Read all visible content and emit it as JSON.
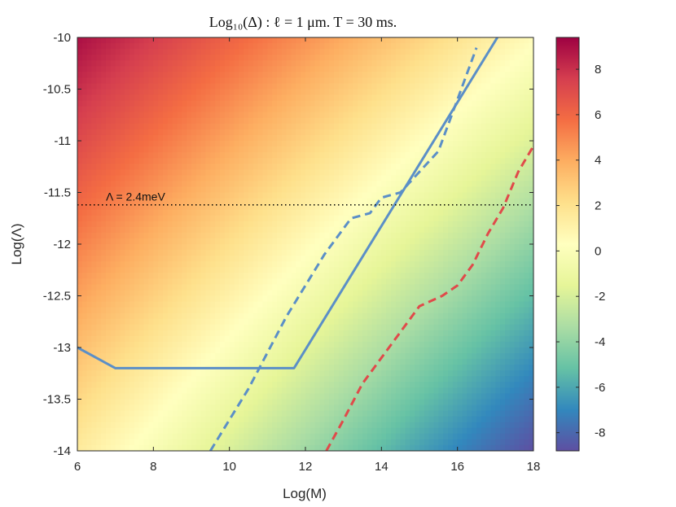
{
  "chart_data": {
    "type": "heatmap",
    "title": "Log₁₀(Δ) :  ℓ = 1 μm.  T = 30 ms.",
    "xlabel": "Log(M)",
    "ylabel": "Log(Λ)",
    "xlim": [
      6,
      18
    ],
    "ylim": [
      -14,
      -10
    ],
    "xticks": [
      6,
      8,
      10,
      12,
      14,
      16,
      18
    ],
    "yticks": [
      -10,
      -10.5,
      -11,
      -11.5,
      -12,
      -12.5,
      -13,
      -13.5,
      -14
    ],
    "colorbar": {
      "range": [
        -8.8,
        9.4
      ],
      "ticks": [
        8,
        6,
        4,
        2,
        0,
        -2,
        -4,
        -6,
        -8
      ],
      "colormap": "Spectral (red high, purple low)"
    },
    "heatmap_model": {
      "description": "Log10(Delta) increases toward top-left, decreases toward bottom-right",
      "value_at_top_left": 9.0,
      "value_at_bottom_right": -8.8,
      "value_at_top_right": 0.5,
      "value_at_bottom_left": 1.5
    },
    "series": [
      {
        "name": "solid-blue-bound",
        "style": "solid",
        "color": "#5b8fc7",
        "x": [
          6.0,
          7.0,
          11.7,
          17.05
        ],
        "y": [
          -13.0,
          -13.2,
          -13.2,
          -10.0
        ]
      },
      {
        "name": "dashed-blue-bound",
        "style": "dashed",
        "color": "#5b8fc7",
        "x": [
          9.5,
          10.5,
          11.5,
          12.5,
          13.2,
          13.7,
          14.0,
          14.5,
          15.0,
          15.5,
          16.0,
          16.5
        ],
        "y": [
          -14.0,
          -13.4,
          -12.7,
          -12.1,
          -11.75,
          -11.7,
          -11.55,
          -11.5,
          -11.3,
          -11.1,
          -10.6,
          -10.1
        ]
      },
      {
        "name": "dashed-red-bound",
        "style": "dashed",
        "color": "#e04a4a",
        "x": [
          12.55,
          13.0,
          13.5,
          14.0,
          14.5,
          15.0,
          15.3,
          15.6,
          16.0,
          16.4,
          16.8,
          17.2,
          17.6,
          18.0
        ],
        "y": [
          -14.0,
          -13.7,
          -13.35,
          -13.1,
          -12.85,
          -12.6,
          -12.55,
          -12.5,
          -12.4,
          -12.2,
          -11.9,
          -11.65,
          -11.3,
          -11.05
        ]
      }
    ],
    "reference_line": {
      "label": "Λ = 2.4meV",
      "y": -11.62,
      "style": "dotted",
      "color": "#000000"
    }
  }
}
